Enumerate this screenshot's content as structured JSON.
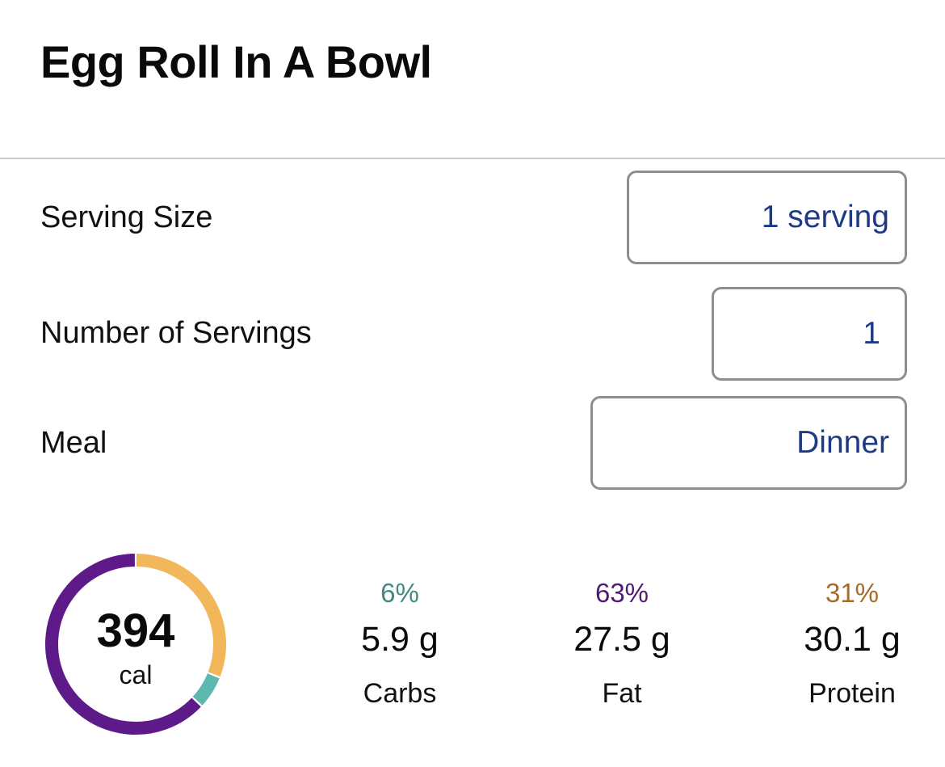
{
  "title": "Egg Roll In A Bowl",
  "rows": {
    "serving_size": {
      "label": "Serving Size",
      "value": "1 serving"
    },
    "num_servings": {
      "label": "Number of Servings",
      "value": "1"
    },
    "meal": {
      "label": "Meal",
      "value": "Dinner"
    }
  },
  "calories": {
    "value": "394",
    "unit": "cal"
  },
  "macros": [
    {
      "pct": "6%",
      "grams": "5.9 g",
      "name": "Carbs",
      "fraction": 0.06,
      "color": "#5fb8b0",
      "text_color": "#3f8a82"
    },
    {
      "pct": "63%",
      "grams": "27.5 g",
      "name": "Fat",
      "fraction": 0.63,
      "color": "#5f1a8a",
      "text_color": "#4e1a74"
    },
    {
      "pct": "31%",
      "grams": "30.1 g",
      "name": "Protein",
      "fraction": 0.31,
      "color": "#f2b75a",
      "text_color": "#a86a25"
    }
  ],
  "colors": {
    "accent_text": "#1e3a86",
    "field_border": "#8e8e8e",
    "divider": "#c9c9c9"
  }
}
